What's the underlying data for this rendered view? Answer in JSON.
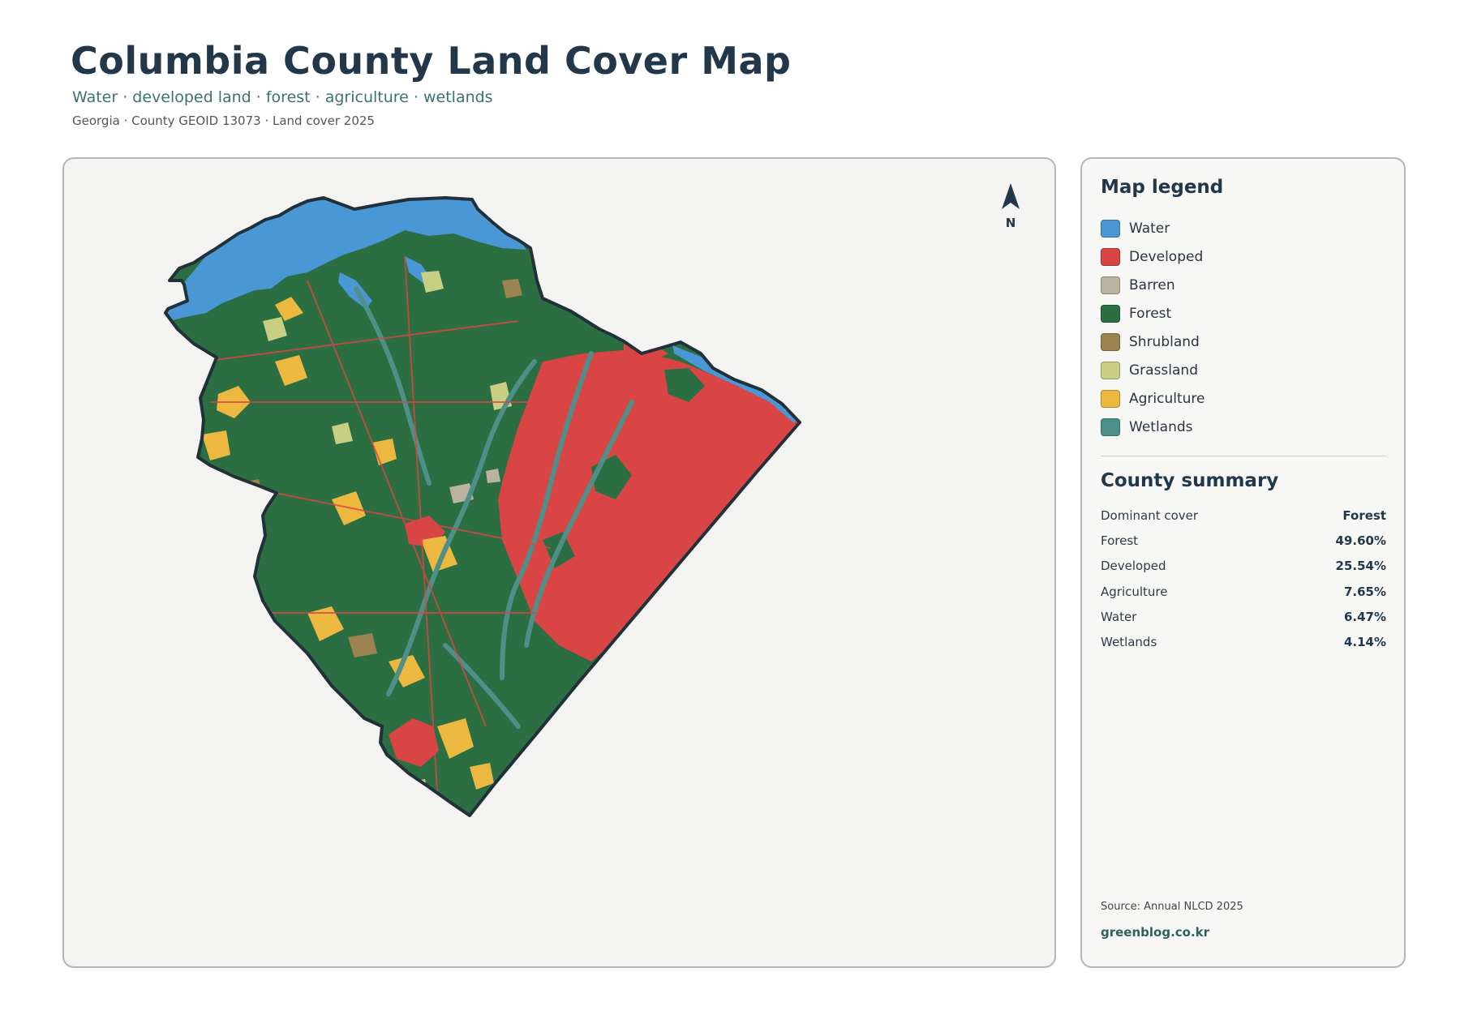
{
  "header": {
    "title": "Columbia County Land Cover Map",
    "subtitle": "Water · developed land · forest · agriculture · wetlands",
    "meta": "Georgia · County GEOID 13073 · Land cover 2025"
  },
  "map": {
    "north_label": "N",
    "colors": {
      "water": "#4a97d6",
      "developed": "#d94545",
      "barren": "#bcb2a0",
      "forest": "#2b6e42",
      "shrubland": "#9c8450",
      "grassland": "#c8cf84",
      "agriculture": "#ecb83f",
      "wetlands": "#4e8f8a",
      "boundary": "#22303a",
      "background": "#f3f3f2"
    }
  },
  "legend": {
    "title": "Map legend",
    "items": [
      {
        "label": "Water",
        "color": "#4a97d6"
      },
      {
        "label": "Developed",
        "color": "#d94545"
      },
      {
        "label": "Barren",
        "color": "#bcb2a0"
      },
      {
        "label": "Forest",
        "color": "#2b6e42"
      },
      {
        "label": "Shrubland",
        "color": "#9c8450"
      },
      {
        "label": "Grassland",
        "color": "#c8cf84"
      },
      {
        "label": "Agriculture",
        "color": "#ecb83f"
      },
      {
        "label": "Wetlands",
        "color": "#4e8f8a"
      }
    ]
  },
  "summary": {
    "title": "County summary",
    "rows": [
      {
        "label": "Dominant cover",
        "value": "Forest"
      },
      {
        "label": "Forest",
        "value": "49.60%"
      },
      {
        "label": "Developed",
        "value": "25.54%"
      },
      {
        "label": "Agriculture",
        "value": "7.65%"
      },
      {
        "label": "Water",
        "value": "6.47%"
      },
      {
        "label": "Wetlands",
        "value": "4.14%"
      }
    ]
  },
  "footer": {
    "source": "Source: Annual NLCD 2025",
    "credit": "greenblog.co.kr"
  }
}
